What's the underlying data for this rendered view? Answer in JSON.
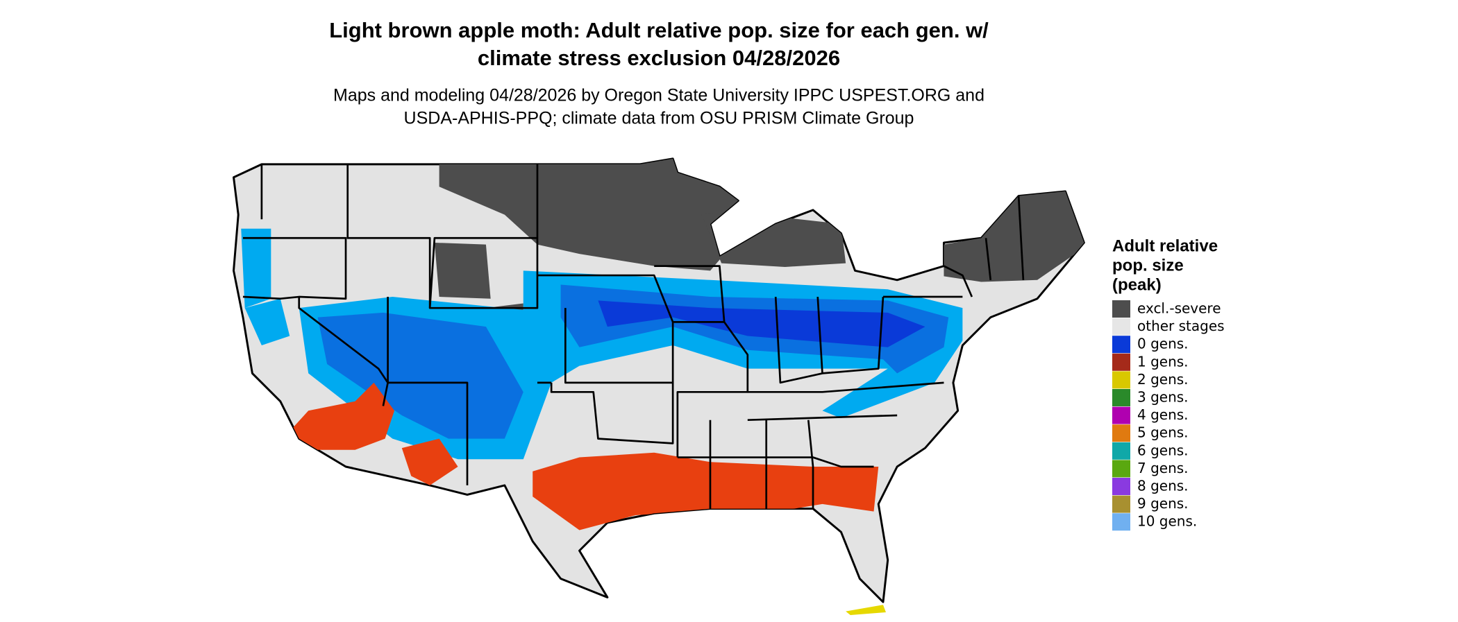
{
  "title": [
    "Light brown apple moth: Adult relative pop. size for each gen. w/",
    "climate stress exclusion 04/28/2026"
  ],
  "subtitle": [
    "Maps and modeling 04/28/2026 by Oregon State University IPPC USPEST.ORG and",
    "USDA-APHIS-PPQ; climate data from OSU PRISM Climate Group"
  ],
  "legend": {
    "title": [
      "Adult relative",
      "pop. size",
      "(peak)"
    ],
    "items": [
      {
        "label": "excl.-severe",
        "color": "#4d4d4d"
      },
      {
        "label": "other stages",
        "color": "#e6e6e6"
      },
      {
        "label": "0 gens.",
        "color": "#0a3ad8"
      },
      {
        "label": "1 gens.",
        "color": "#a52a1a"
      },
      {
        "label": "2 gens.",
        "color": "#d9c800"
      },
      {
        "label": "3 gens.",
        "color": "#2a8a2a"
      },
      {
        "label": "4 gens.",
        "color": "#b000b0"
      },
      {
        "label": "5 gens.",
        "color": "#e07a10"
      },
      {
        "label": "6 gens.",
        "color": "#10a8a8"
      },
      {
        "label": "7 gens.",
        "color": "#5aa810"
      },
      {
        "label": "8 gens.",
        "color": "#8a3ae0"
      },
      {
        "label": "9 gens.",
        "color": "#a89030"
      },
      {
        "label": "10 gens.",
        "color": "#70b0f0"
      }
    ]
  }
}
